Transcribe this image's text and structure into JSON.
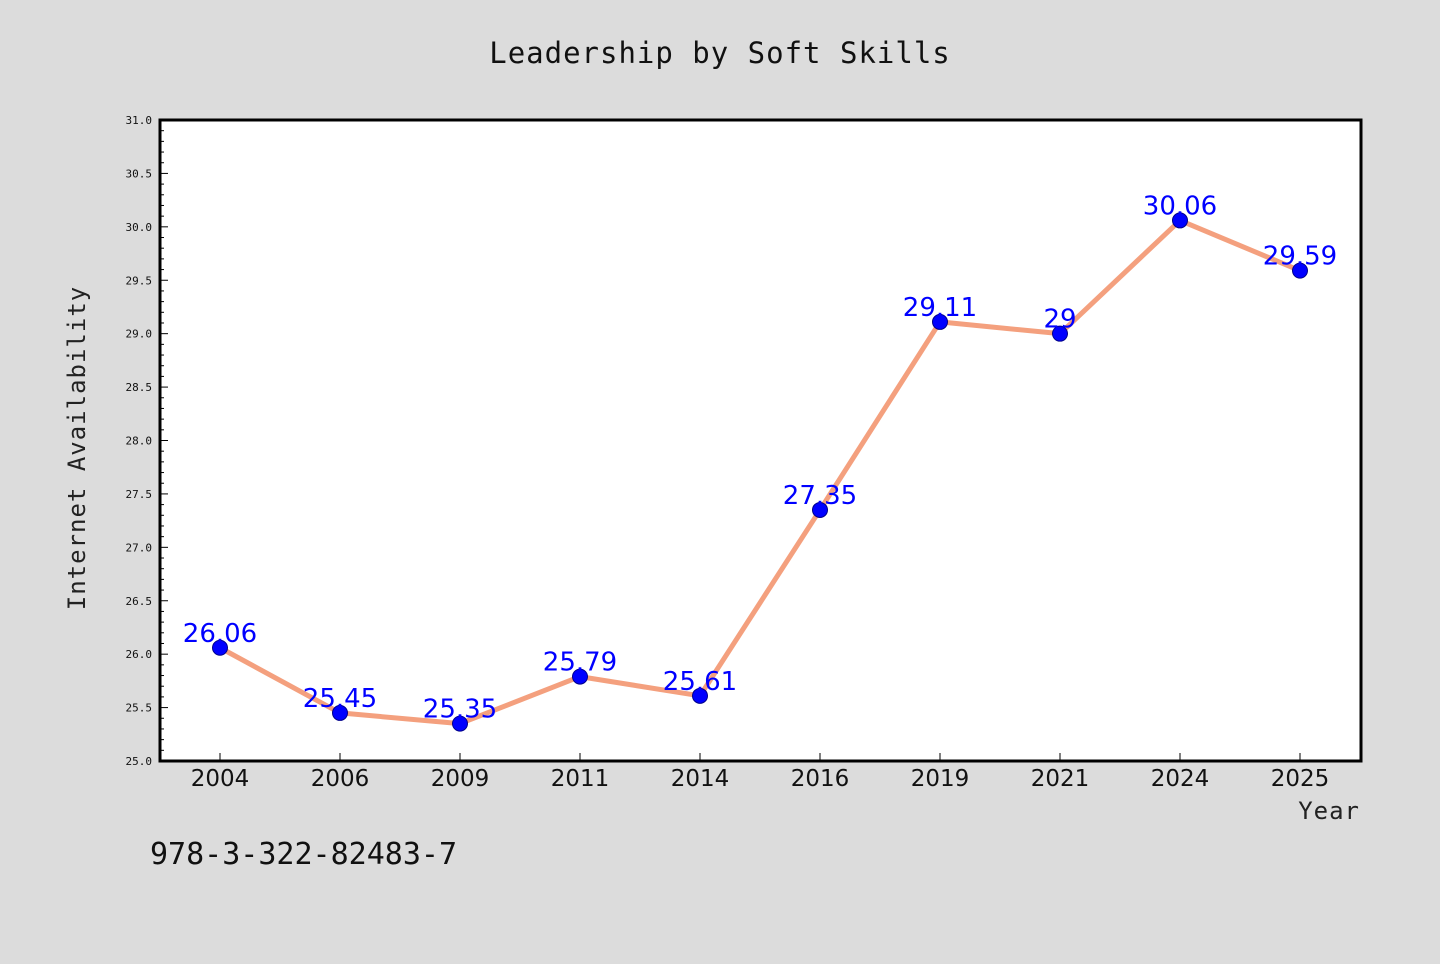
{
  "colors": {
    "background": "#dcdcdc",
    "plot_background": "#ffffff",
    "line": "#f4a07e",
    "marker": "#0000ff",
    "marker_edge": "#00008b",
    "data_label": "#0000ff"
  },
  "footer": {
    "isbn": "978-3-322-82483-7"
  },
  "chart_data": {
    "type": "line",
    "title": "Leadership by Soft Skills",
    "xlabel": "Year",
    "ylabel": "Internet Availability",
    "categories": [
      "2004",
      "2006",
      "2009",
      "2011",
      "2014",
      "2016",
      "2019",
      "2021",
      "2024",
      "2025"
    ],
    "series": [
      {
        "values": [
          26.06,
          25.45,
          25.35,
          25.79,
          25.61,
          27.35,
          29.11,
          29,
          30.06,
          29.59
        ],
        "labels": [
          "26.06",
          "25.45",
          "25.35",
          "25.79",
          "25.61",
          "27.35",
          "29.11",
          "29",
          "30.06",
          "29.59"
        ]
      }
    ],
    "ylim": [
      25.0,
      31.0
    ],
    "yticks": [
      "25.0",
      "25.5",
      "26.0",
      "26.5",
      "27.0",
      "27.5",
      "28.0",
      "28.5",
      "29.0",
      "29.5",
      "30.0",
      "30.5",
      "31.0"
    ],
    "grid": false,
    "legend": "none"
  }
}
